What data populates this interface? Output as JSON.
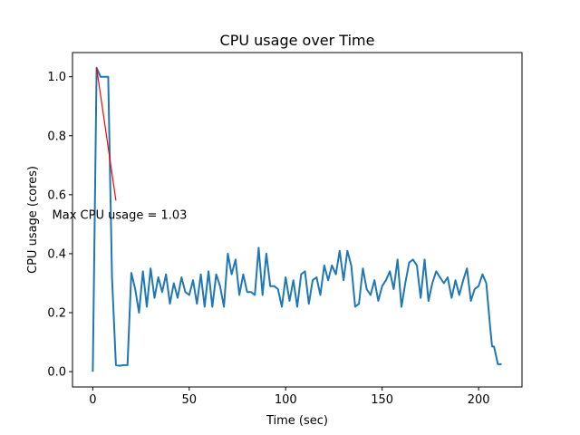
{
  "chart_data": {
    "type": "line",
    "title": "CPU usage over Time",
    "xlabel": "Time (sec)",
    "ylabel": "CPU usage (cores)",
    "xlim": [
      -10.5,
      222.5
    ],
    "ylim": [
      -0.052,
      1.082
    ],
    "xticks": [
      0,
      50,
      100,
      150,
      200
    ],
    "xtick_labels": [
      "0",
      "50",
      "100",
      "150",
      "200"
    ],
    "yticks": [
      0.0,
      0.2,
      0.4,
      0.6,
      0.8,
      1.0
    ],
    "ytick_labels": [
      "0.0",
      "0.2",
      "0.4",
      "0.6",
      "0.8",
      "1.0"
    ],
    "grid": false,
    "series": [
      {
        "name": "CPU usage",
        "color": "#1f77b4",
        "x": [
          0,
          2,
          4,
          6,
          8,
          10,
          12,
          14,
          16,
          18,
          20,
          22,
          24,
          26,
          28,
          30,
          32,
          34,
          36,
          38,
          40,
          42,
          44,
          46,
          48,
          50,
          52,
          54,
          56,
          58,
          60,
          62,
          64,
          66,
          68,
          70,
          72,
          74,
          76,
          78,
          80,
          82,
          84,
          86,
          88,
          90,
          92,
          94,
          96,
          98,
          100,
          102,
          104,
          106,
          108,
          110,
          112,
          114,
          116,
          118,
          120,
          122,
          124,
          126,
          128,
          130,
          132,
          134,
          136,
          138,
          140,
          142,
          144,
          146,
          148,
          150,
          152,
          154,
          156,
          158,
          160,
          162,
          164,
          166,
          168,
          170,
          172,
          174,
          176,
          178,
          180,
          182,
          184,
          186,
          188,
          190,
          192,
          194,
          196,
          198,
          200,
          202,
          204,
          206,
          207,
          208,
          210,
          212
        ],
        "y": [
          0,
          1.03,
          1.0,
          1.0,
          1.0,
          0.32,
          0.022,
          0.02,
          0.022,
          0.022,
          0.335,
          0.28,
          0.2,
          0.34,
          0.22,
          0.35,
          0.25,
          0.32,
          0.27,
          0.33,
          0.23,
          0.3,
          0.25,
          0.32,
          0.27,
          0.26,
          0.31,
          0.23,
          0.33,
          0.22,
          0.34,
          0.22,
          0.33,
          0.29,
          0.22,
          0.4,
          0.33,
          0.38,
          0.26,
          0.33,
          0.27,
          0.27,
          0.26,
          0.42,
          0.26,
          0.4,
          0.29,
          0.29,
          0.28,
          0.22,
          0.32,
          0.24,
          0.31,
          0.22,
          0.33,
          0.34,
          0.23,
          0.31,
          0.32,
          0.26,
          0.36,
          0.31,
          0.36,
          0.33,
          0.41,
          0.31,
          0.41,
          0.36,
          0.22,
          0.23,
          0.35,
          0.28,
          0.26,
          0.31,
          0.24,
          0.29,
          0.31,
          0.34,
          0.28,
          0.38,
          0.22,
          0.3,
          0.37,
          0.38,
          0.36,
          0.25,
          0.38,
          0.24,
          0.3,
          0.34,
          0.32,
          0.3,
          0.32,
          0.25,
          0.31,
          0.26,
          0.31,
          0.35,
          0.24,
          0.28,
          0.29,
          0.33,
          0.3,
          0.15,
          0.085,
          0.085,
          0.025,
          0.025
        ]
      }
    ],
    "annotation": {
      "text": "Max CPU usage = 1.03",
      "color": "#ff0000",
      "xy": [
        2,
        1.03
      ],
      "xytext": [
        12,
        0.58
      ]
    }
  }
}
